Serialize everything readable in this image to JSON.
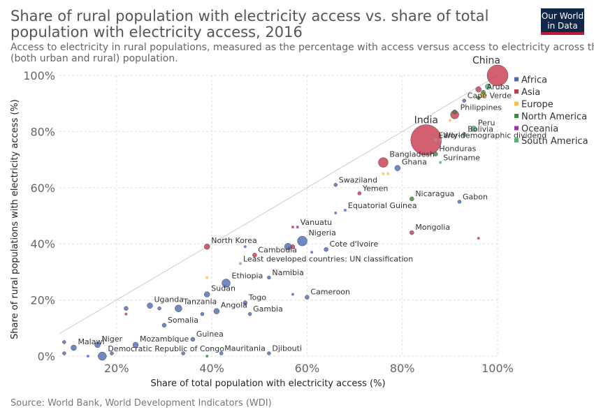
{
  "header": {
    "title": "Share of rural population with electricity access vs. share of total population with electricity access, 2016",
    "subtitle_line1": "Access to electricity in rural populations, measured as the percentage with access versus access to electricity across the total",
    "subtitle_line2": "(both urban and rural) population.",
    "logo_line1": "Our World",
    "logo_line2": "in Data"
  },
  "footer": {
    "source": "Source: World Bank, World Development Indicators (WDI)"
  },
  "chart_data": {
    "type": "scatter",
    "title": "Share of rural population with electricity access vs. share of total population with electricity access, 2016",
    "xlabel": "Share of total population with electricity access (%)",
    "ylabel": "Share of rural populations with electricity access (%)",
    "xlim": [
      8,
      100
    ],
    "ylim": [
      0,
      100
    ],
    "x_ticks": [
      20,
      40,
      60,
      80,
      100
    ],
    "y_ticks": [
      0,
      20,
      40,
      60,
      80,
      100
    ],
    "x_tick_labels": [
      "20%",
      "40%",
      "60%",
      "80%",
      "100%"
    ],
    "y_tick_labels": [
      "0%",
      "20%",
      "40%",
      "60%",
      "80%",
      "100%"
    ],
    "grid": true,
    "reference_line": "y = x",
    "legend_position": "right",
    "colors": {
      "Africa": "#4c6cb3",
      "Asia": "#c8384e",
      "Europe": "#f5c342",
      "North America": "#3b8a3a",
      "Oceania": "#a12fb5",
      "South America": "#4fb57b"
    },
    "legend": [
      "Africa",
      "Asia",
      "Europe",
      "North America",
      "Oceania",
      "South America"
    ],
    "points": [
      {
        "label": "China",
        "region": "Asia",
        "x": 100,
        "y": 100,
        "size": 15
      },
      {
        "label": "Aruba",
        "region": "North America",
        "x": 97,
        "y": 94,
        "size": 3
      },
      {
        "label": "Cape Verde",
        "region": "Africa",
        "x": 93,
        "y": 91,
        "size": 2.5
      },
      {
        "label": "Philippines",
        "region": "Asia",
        "x": 91,
        "y": 86,
        "size": 6
      },
      {
        "label": "India",
        "region": "Asia",
        "x": 85,
        "y": 77,
        "size": 22
      },
      {
        "label": "Early-demographic dividend",
        "region": "",
        "x": 87,
        "y": 77,
        "size": 2
      },
      {
        "label": "World",
        "region": "",
        "x": 88,
        "y": 77,
        "size": 2
      },
      {
        "label": "Bolivia",
        "region": "South America",
        "x": 93,
        "y": 79,
        "size": 3
      },
      {
        "label": "Peru",
        "region": "South America",
        "x": 95,
        "y": 81,
        "size": 4
      },
      {
        "label": "Honduras",
        "region": "North America",
        "x": 87,
        "y": 72,
        "size": 3
      },
      {
        "label": "Suriname",
        "region": "South America",
        "x": 88,
        "y": 69,
        "size": 2
      },
      {
        "label": "Bangladesh",
        "region": "Asia",
        "x": 76,
        "y": 69,
        "size": 7
      },
      {
        "label": "Ghana",
        "region": "Africa",
        "x": 79,
        "y": 67,
        "size": 4
      },
      {
        "label": "Swaziland",
        "region": "Africa",
        "x": 66,
        "y": 61,
        "size": 2.5
      },
      {
        "label": "Yemen",
        "region": "Asia",
        "x": 71,
        "y": 58,
        "size": 2.5
      },
      {
        "label": "Nicaragua",
        "region": "North America",
        "x": 82,
        "y": 56,
        "size": 3
      },
      {
        "label": "Gabon",
        "region": "Africa",
        "x": 92,
        "y": 55,
        "size": 2.5
      },
      {
        "label": "Equatorial Guinea",
        "region": "Africa",
        "x": 68,
        "y": 52,
        "size": 2
      },
      {
        "label": "Vanuatu",
        "region": "Oceania",
        "x": 58,
        "y": 46,
        "size": 2
      },
      {
        "label": "Mongolia",
        "region": "Asia",
        "x": 82,
        "y": 44,
        "size": 3
      },
      {
        "label": "Nigeria",
        "region": "Africa",
        "x": 59,
        "y": 41,
        "size": 7
      },
      {
        "label": "North Korea",
        "region": "Asia",
        "x": 39,
        "y": 39,
        "size": 4
      },
      {
        "label": "Cote d'Ivoire",
        "region": "Africa",
        "x": 64,
        "y": 38,
        "size": 3
      },
      {
        "label": "Cambodia",
        "region": "Asia",
        "x": 49,
        "y": 36,
        "size": 3
      },
      {
        "label": "Least developed countries: UN classification",
        "region": "",
        "x": 46,
        "y": 33,
        "size": 2
      },
      {
        "label": "Namibia",
        "region": "Africa",
        "x": 52,
        "y": 28,
        "size": 2.5
      },
      {
        "label": "Ethiopia",
        "region": "Africa",
        "x": 43,
        "y": 26,
        "size": 6
      },
      {
        "label": "Sudan",
        "region": "Africa",
        "x": 39,
        "y": 22,
        "size": 4
      },
      {
        "label": "Cameroon",
        "region": "Africa",
        "x": 60,
        "y": 21,
        "size": 3
      },
      {
        "label": "Togo",
        "region": "Africa",
        "x": 47,
        "y": 19,
        "size": 3
      },
      {
        "label": "Uganda",
        "region": "Africa",
        "x": 27,
        "y": 18,
        "size": 4
      },
      {
        "label": "Tanzania",
        "region": "Africa",
        "x": 33,
        "y": 17,
        "size": 5
      },
      {
        "label": "Angola",
        "region": "Africa",
        "x": 41,
        "y": 16,
        "size": 4
      },
      {
        "label": "Gambia",
        "region": "Africa",
        "x": 48,
        "y": 15,
        "size": 2.5
      },
      {
        "label": "Somalia",
        "region": "Africa",
        "x": 30,
        "y": 11,
        "size": 3
      },
      {
        "label": "Guinea",
        "region": "Africa",
        "x": 36,
        "y": 6,
        "size": 3
      },
      {
        "label": "Malawi",
        "region": "Africa",
        "x": 11,
        "y": 3,
        "size": 4
      },
      {
        "label": "Niger",
        "region": "Africa",
        "x": 16,
        "y": 4,
        "size": 4
      },
      {
        "label": "Mozambique",
        "region": "Africa",
        "x": 24,
        "y": 4,
        "size": 4
      },
      {
        "label": "Democratic Republic of Congo",
        "region": "Africa",
        "x": 17,
        "y": 0,
        "size": 6
      },
      {
        "label": "Mauritania",
        "region": "Africa",
        "x": 42,
        "y": 1,
        "size": 2.5
      },
      {
        "label": "Djibouti",
        "region": "Africa",
        "x": 52,
        "y": 1,
        "size": 2.5
      },
      {
        "label": "",
        "region": "Africa",
        "x": 9,
        "y": 5,
        "size": 2.5
      },
      {
        "label": "",
        "region": "Africa",
        "x": 9,
        "y": 1,
        "size": 2.5
      },
      {
        "label": "",
        "region": "Africa",
        "x": 14,
        "y": 0,
        "size": 2
      },
      {
        "label": "",
        "region": "Africa",
        "x": 19,
        "y": 1,
        "size": 2.5
      },
      {
        "label": "",
        "region": "Africa",
        "x": 22,
        "y": 17,
        "size": 3
      },
      {
        "label": "",
        "region": "Asia",
        "x": 22,
        "y": 15,
        "size": 2
      },
      {
        "label": "",
        "region": "Africa",
        "x": 29,
        "y": 17,
        "size": 2.5
      },
      {
        "label": "",
        "region": "Africa",
        "x": 34,
        "y": 1,
        "size": 2.5
      },
      {
        "label": "",
        "region": "Africa",
        "x": 38,
        "y": 15,
        "size": 2.5
      },
      {
        "label": "",
        "region": "North America",
        "x": 39,
        "y": 0,
        "size": 2
      },
      {
        "label": "",
        "region": "Europe",
        "x": 39,
        "y": 28,
        "size": 2
      },
      {
        "label": "",
        "region": "Africa",
        "x": 47,
        "y": 39,
        "size": 2
      },
      {
        "label": "",
        "region": "Africa",
        "x": 56,
        "y": 39,
        "size": 5
      },
      {
        "label": "",
        "region": "Asia",
        "x": 57,
        "y": 39,
        "size": 3
      },
      {
        "label": "",
        "region": "Africa",
        "x": 57,
        "y": 22,
        "size": 2
      },
      {
        "label": "",
        "region": "Africa",
        "x": 61,
        "y": 37,
        "size": 2
      },
      {
        "label": "",
        "region": "Africa",
        "x": 66,
        "y": 51,
        "size": 2
      },
      {
        "label": "",
        "region": "Asia",
        "x": 57,
        "y": 46,
        "size": 2
      },
      {
        "label": "",
        "region": "Europe",
        "x": 76,
        "y": 65,
        "size": 2
      },
      {
        "label": "",
        "region": "Europe",
        "x": 77,
        "y": 65,
        "size": 2
      },
      {
        "label": "",
        "region": "Asia",
        "x": 96,
        "y": 42,
        "size": 2
      },
      {
        "label": "",
        "region": "Europe",
        "x": 90,
        "y": 84,
        "size": 2
      },
      {
        "label": "",
        "region": "North America",
        "x": 91,
        "y": 87,
        "size": 3
      },
      {
        "label": "",
        "region": "Asia",
        "x": 96,
        "y": 95,
        "size": 4
      },
      {
        "label": "",
        "region": "Europe",
        "x": 97,
        "y": 93,
        "size": 4
      },
      {
        "label": "",
        "region": "South America",
        "x": 98,
        "y": 96,
        "size": 4
      },
      {
        "label": "",
        "region": "North America",
        "x": 96,
        "y": 92,
        "size": 2.5
      }
    ]
  }
}
